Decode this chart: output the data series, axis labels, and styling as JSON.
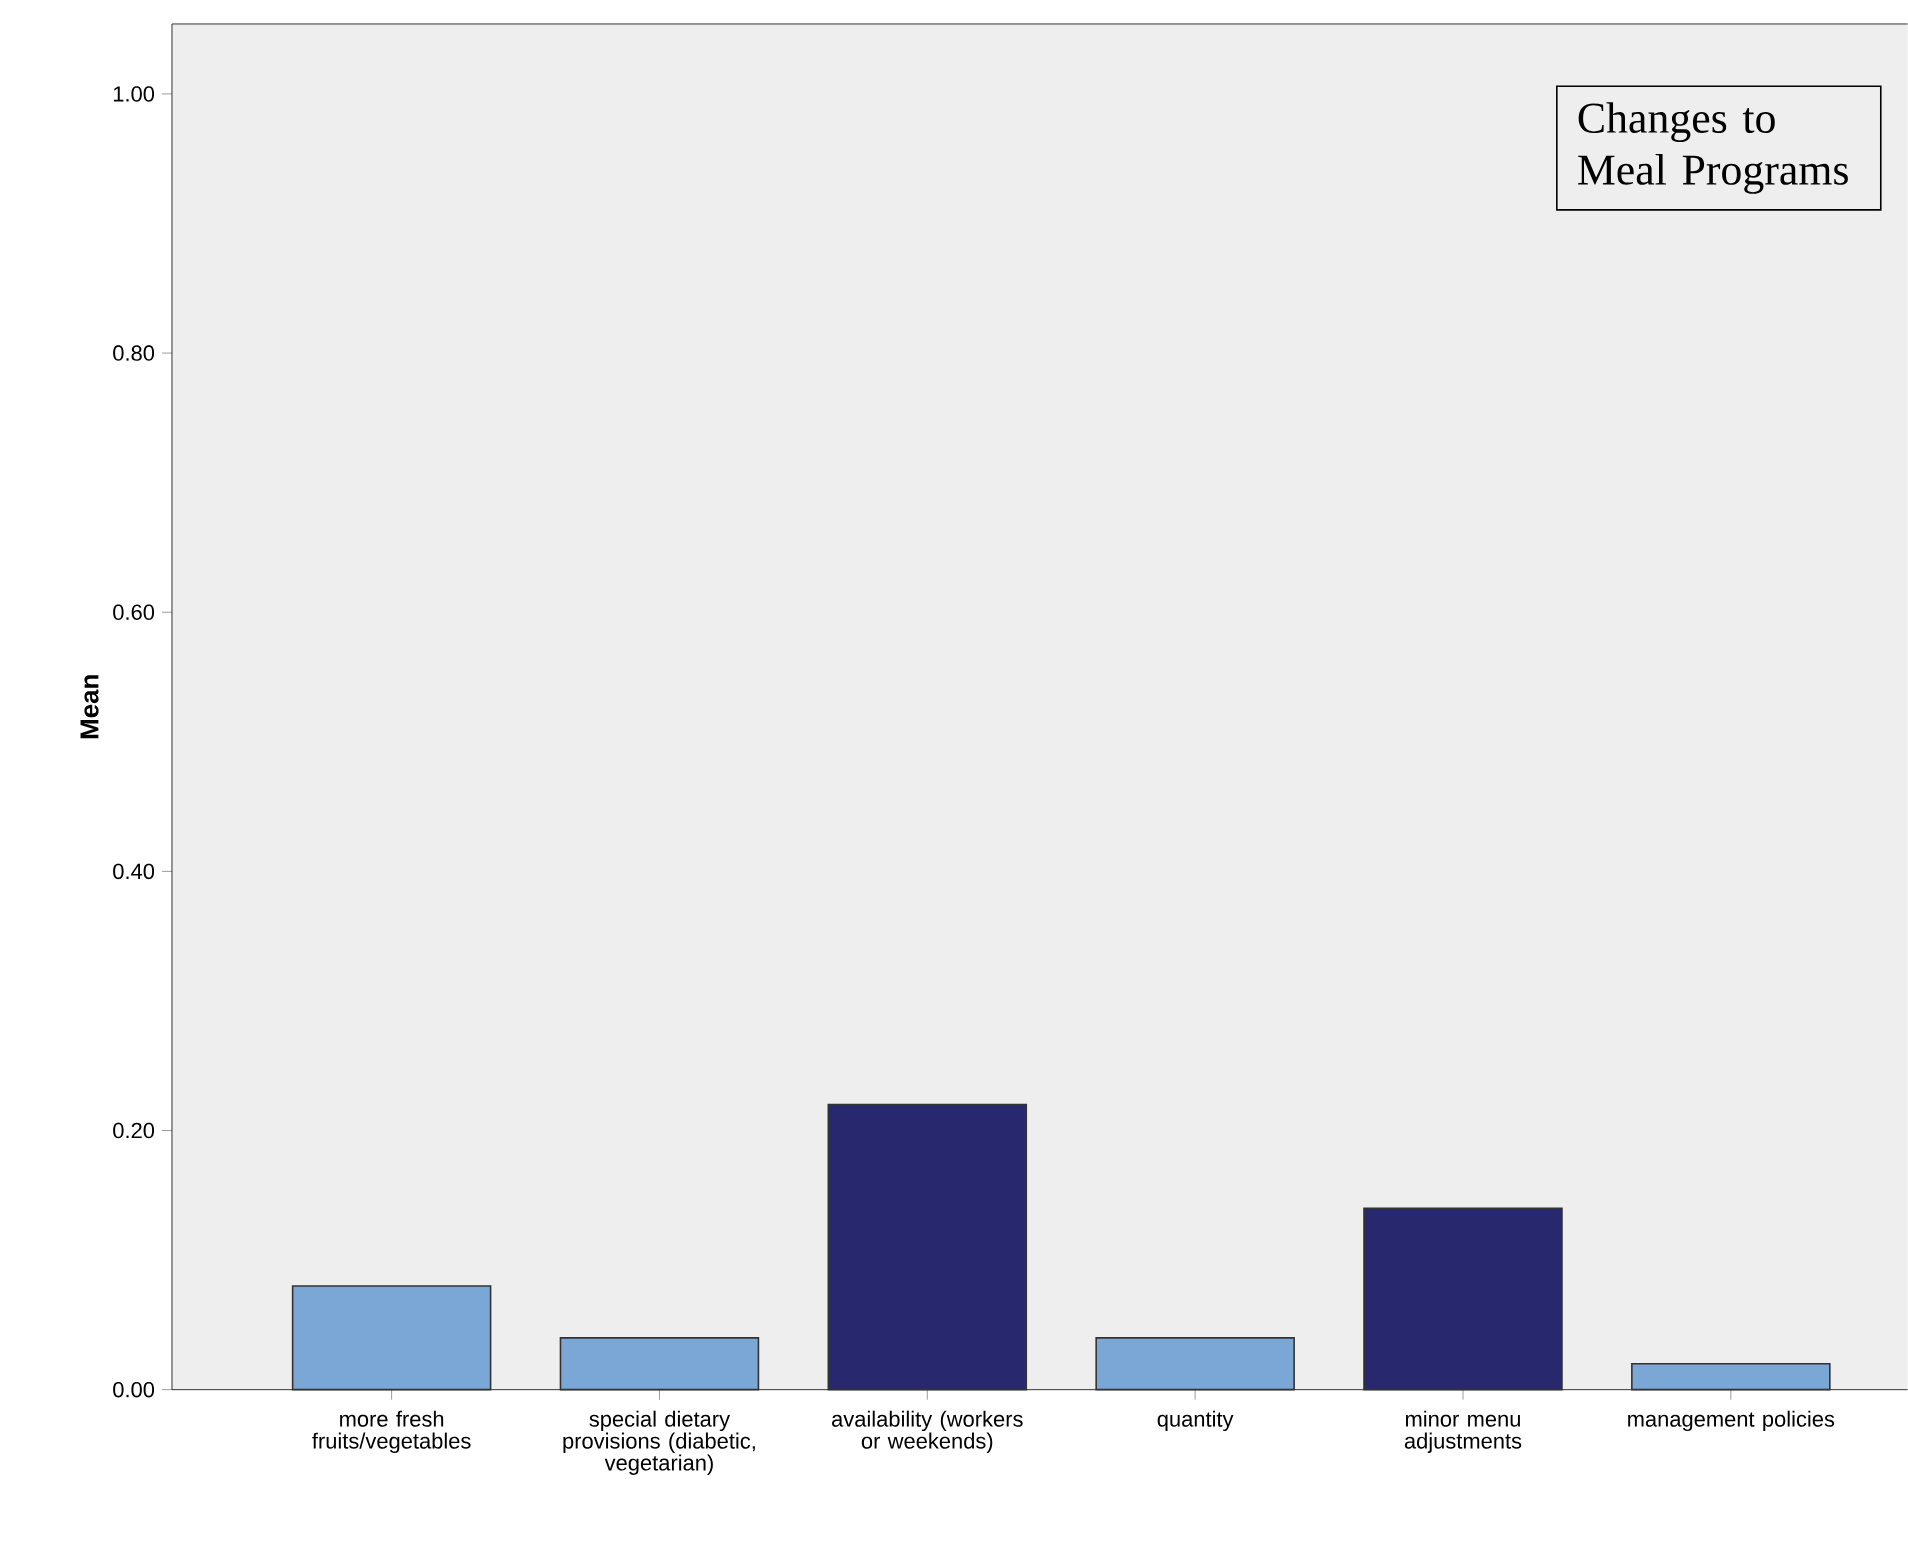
{
  "chart_data": {
    "type": "bar",
    "title": "Changes to Meal Programs",
    "ylabel": "Mean",
    "categories": [
      "more fresh fruits/vegetables",
      "special dietary provisions (diabetic, vegetarian)",
      "availability (workers or weekends)",
      "quantity",
      "minor menu adjustments",
      "management policies"
    ],
    "values": [
      0.08,
      0.04,
      0.22,
      0.04,
      0.14,
      0.02
    ],
    "colors": [
      "#7ba7d6",
      "#7ba7d6",
      "#27286e",
      "#7ba7d6",
      "#27286e",
      "#7ba7d6"
    ],
    "ylim": [
      0,
      1.054
    ],
    "yticks": [
      {
        "value": 0,
        "label": "0.00"
      },
      {
        "value": 0.2,
        "label": "0.20"
      },
      {
        "value": 0.4,
        "label": "0.40"
      },
      {
        "value": 0.6,
        "label": "0.60"
      },
      {
        "value": 0.8,
        "label": "0.80"
      },
      {
        "value": 1.0,
        "label": "1.00"
      }
    ],
    "grid": false
  }
}
